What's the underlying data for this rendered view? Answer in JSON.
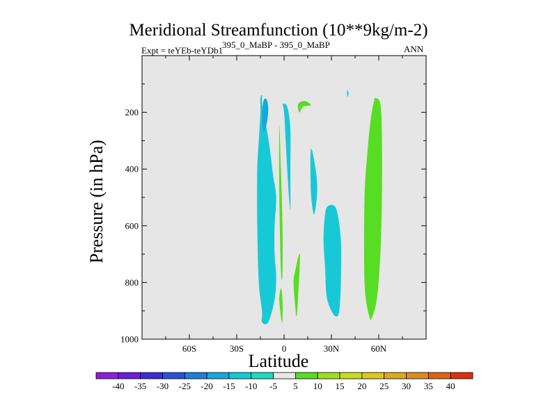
{
  "chart_data": {
    "type": "contour",
    "title": "Meridional Streamfunction (10**9kg/m-2)",
    "left_string": "Expt = teYEb-teYDb1",
    "center_string": "395_0_MaBP - 395_0_MaBP",
    "right_string": "ANN",
    "xlabel": "Latitude",
    "ylabel": "Pressure (in hPa)",
    "xlim": [
      -90,
      90
    ],
    "ylim": [
      1000,
      0
    ],
    "x_ticks": [
      {
        "value": -60,
        "label": "60S"
      },
      {
        "value": -30,
        "label": "30S"
      },
      {
        "value": 0,
        "label": "0"
      },
      {
        "value": 30,
        "label": "30N"
      },
      {
        "value": 60,
        "label": "60N"
      }
    ],
    "y_ticks": [
      200,
      400,
      600,
      800,
      1000
    ],
    "background_color": "#e6e6e6",
    "colorbar": {
      "levels": [
        "-40",
        "-35",
        "-30",
        "-25",
        "-20",
        "-15",
        "-10",
        "-5",
        "5",
        "10",
        "15",
        "20",
        "25",
        "30",
        "35",
        "40"
      ],
      "colors": [
        "#8c1fd9",
        "#6b1fd9",
        "#3d2bd6",
        "#2a52d9",
        "#1f7fd9",
        "#17a8d9",
        "#17c9d6",
        "#1fdcc4",
        "#e8e8e8",
        "#57dd23",
        "#9ee01f",
        "#c8dc1f",
        "#dcc81f",
        "#dcaa1f",
        "#dc8c1f",
        "#dc641f",
        "#dc2f12"
      ]
    },
    "regions": [
      {
        "name": "south-upper-cell",
        "level": "-10",
        "color": "#17c9d6",
        "lat": [
          -14,
          -10,
          -6,
          -5,
          -6,
          -6,
          -5,
          -7,
          -9,
          -11,
          -13,
          -14,
          -14,
          -15,
          -15,
          -16,
          -17,
          -17,
          -16,
          -14
        ],
        "p": [
          940,
          940,
          860,
          780,
          700,
          600,
          500,
          420,
          330,
          260,
          210,
          160,
          140,
          150,
          200,
          300,
          400,
          600,
          800,
          900
        ]
      },
      {
        "name": "south-upper-core",
        "level": "-15",
        "color": "#17a8d9",
        "lat": [
          -13,
          -11,
          -10,
          -11,
          -13,
          -14
        ],
        "p": [
          270,
          240,
          190,
          155,
          160,
          220
        ]
      },
      {
        "name": "equatorial-upper-cell",
        "level": "-10",
        "color": "#17c9d6",
        "lat": [
          -1,
          2,
          4,
          4,
          4,
          3,
          2,
          1,
          0,
          -1
        ],
        "p": [
          170,
          180,
          260,
          400,
          540,
          490,
          400,
          300,
          200,
          170
        ]
      },
      {
        "name": "equatorial-positive-strip",
        "level": "5",
        "color": "#57dd23",
        "lat": [
          -3,
          -2,
          -1,
          -1,
          -2,
          -3
        ],
        "p": [
          250,
          400,
          600,
          770,
          760,
          500
        ]
      },
      {
        "name": "equatorial-positive-lower",
        "level": "5",
        "color": "#57dd23",
        "lat": [
          -2,
          -1,
          -1,
          -2,
          -3
        ],
        "p": [
          820,
          860,
          940,
          920,
          860
        ]
      },
      {
        "name": "near-equator-positive",
        "level": "5",
        "color": "#57dd23",
        "lat": [
          7,
          10,
          9,
          8,
          7,
          6
        ],
        "p": [
          760,
          700,
          840,
          920,
          880,
          800
        ]
      },
      {
        "name": "upper-positive-blob",
        "level": "5",
        "color": "#57dd23",
        "lat": [
          9,
          13,
          17,
          12,
          10,
          9
        ],
        "p": [
          170,
          160,
          175,
          180,
          200,
          190
        ]
      },
      {
        "name": "tiny-negative-cell",
        "level": "-5",
        "color": "#1fdcc4",
        "lat": [
          40,
          41,
          40
        ],
        "p": [
          120,
          135,
          145
        ]
      },
      {
        "name": "subtropical-upper-cell",
        "level": "-10",
        "color": "#17c9d6",
        "lat": [
          17,
          20,
          21,
          19,
          17
        ],
        "p": [
          330,
          400,
          480,
          560,
          480
        ]
      },
      {
        "name": "northern-subtropical-cell",
        "level": "-10",
        "color": "#17c9d6",
        "lat": [
          28,
          33,
          36,
          36,
          35,
          33,
          30,
          27,
          26,
          25,
          26
        ],
        "p": [
          530,
          540,
          650,
          800,
          900,
          920,
          900,
          850,
          750,
          650,
          560
        ]
      },
      {
        "name": "northern-positive-cell",
        "level": "5",
        "color": "#57dd23",
        "lat": [
          58,
          61,
          62,
          62,
          61,
          59,
          56,
          54,
          51,
          51,
          53,
          55,
          57
        ],
        "p": [
          150,
          170,
          280,
          500,
          700,
          850,
          920,
          920,
          800,
          500,
          330,
          220,
          160
        ]
      }
    ]
  }
}
